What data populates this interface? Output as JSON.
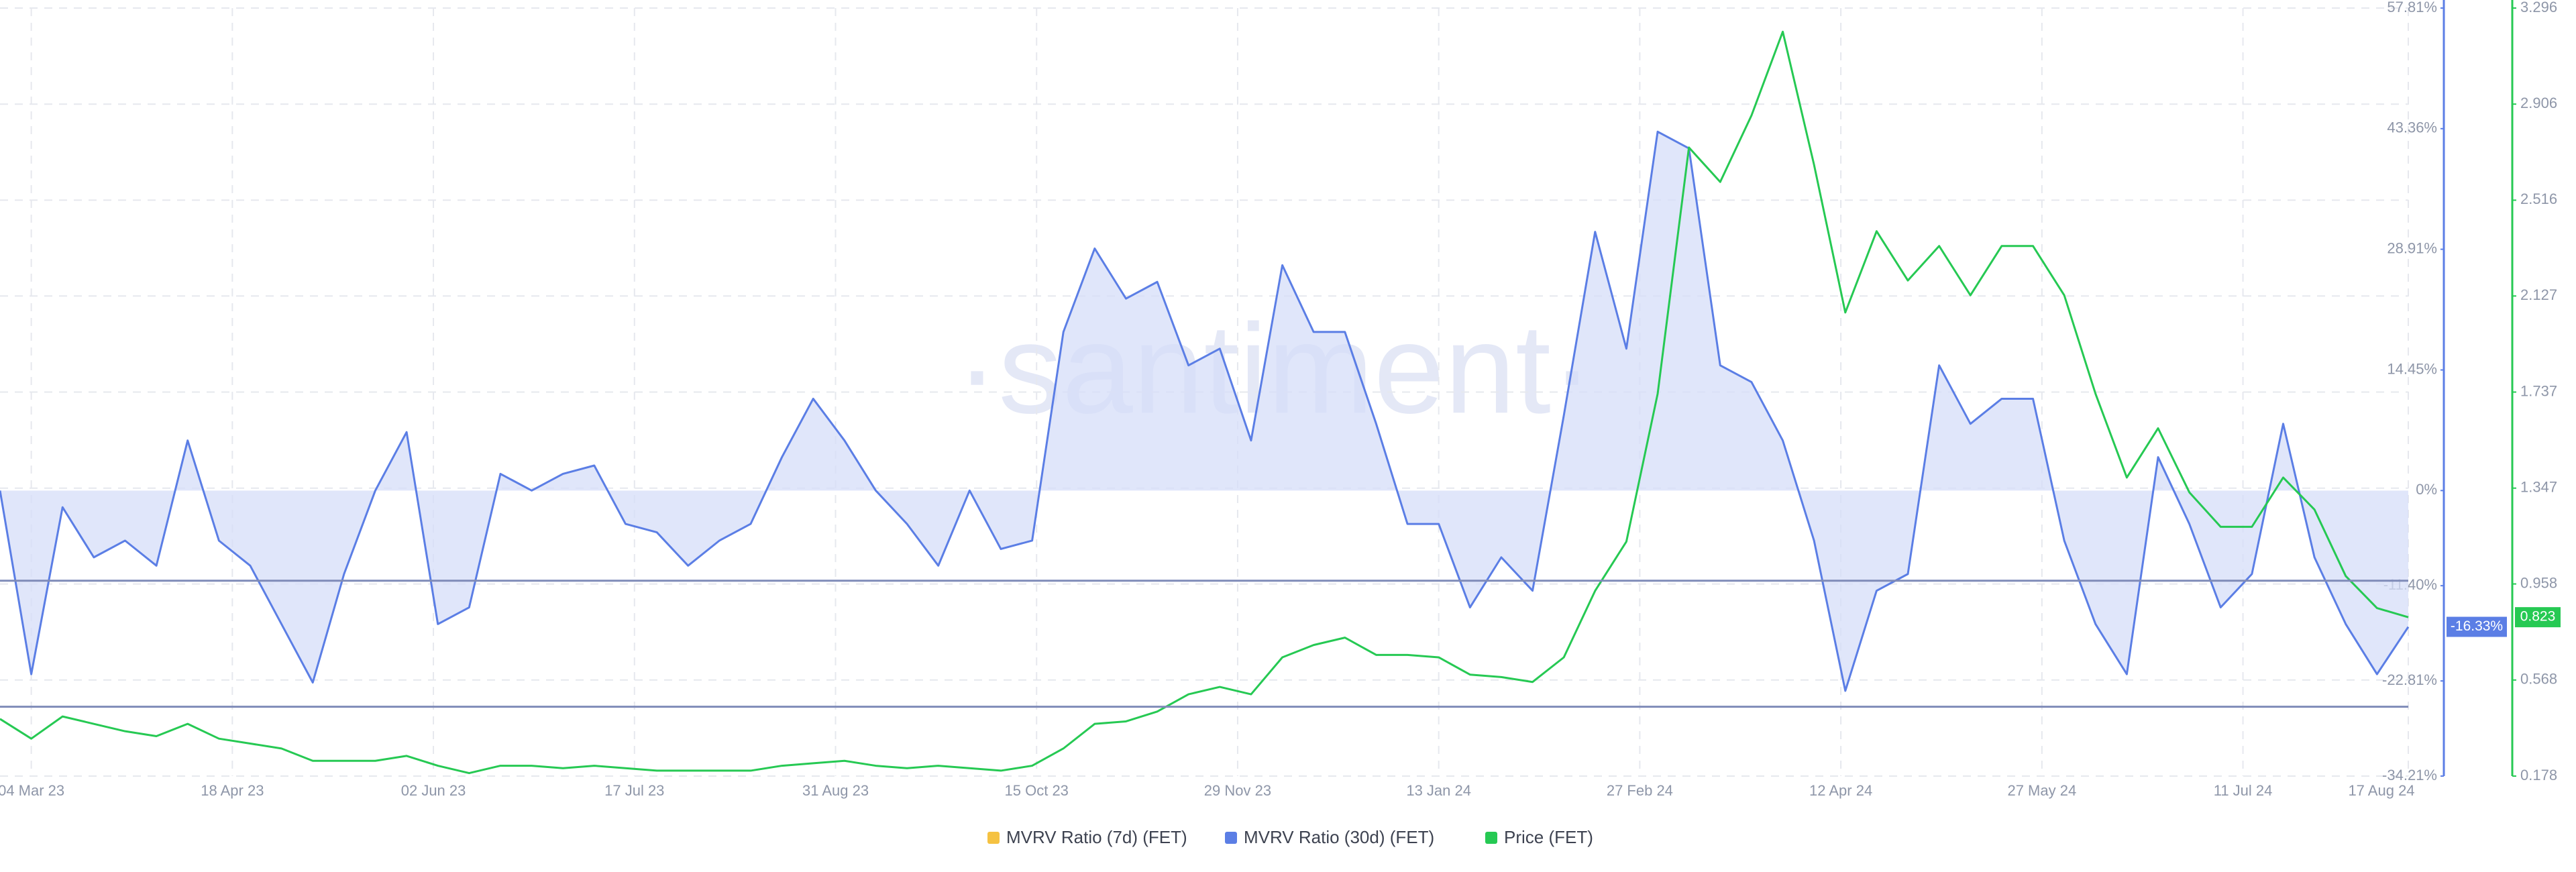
{
  "chart_data": {
    "type": "line",
    "watermark": "·santiment·",
    "x": [
      "2023-02-25",
      "2023-03-04",
      "2023-03-11",
      "2023-03-18",
      "2023-03-25",
      "2023-04-01",
      "2023-04-08",
      "2023-04-15",
      "2023-04-22",
      "2023-04-29",
      "2023-05-06",
      "2023-05-13",
      "2023-05-20",
      "2023-05-27",
      "2023-06-03",
      "2023-06-10",
      "2023-06-17",
      "2023-06-24",
      "2023-07-01",
      "2023-07-08",
      "2023-07-15",
      "2023-07-22",
      "2023-07-29",
      "2023-08-05",
      "2023-08-12",
      "2023-08-19",
      "2023-08-26",
      "2023-09-02",
      "2023-09-09",
      "2023-09-16",
      "2023-09-23",
      "2023-09-30",
      "2023-10-07",
      "2023-10-14",
      "2023-10-21",
      "2023-10-28",
      "2023-11-04",
      "2023-11-11",
      "2023-11-18",
      "2023-11-25",
      "2023-12-02",
      "2023-12-09",
      "2023-12-16",
      "2023-12-23",
      "2023-12-30",
      "2024-01-06",
      "2024-01-13",
      "2024-01-20",
      "2024-01-27",
      "2024-02-03",
      "2024-02-10",
      "2024-02-17",
      "2024-02-24",
      "2024-03-02",
      "2024-03-09",
      "2024-03-16",
      "2024-03-23",
      "2024-03-30",
      "2024-04-06",
      "2024-04-13",
      "2024-04-20",
      "2024-04-27",
      "2024-05-04",
      "2024-05-11",
      "2024-05-18",
      "2024-05-25",
      "2024-06-01",
      "2024-06-08",
      "2024-06-15",
      "2024-06-22",
      "2024-06-29",
      "2024-07-06",
      "2024-07-13",
      "2024-07-20",
      "2024-07-27",
      "2024-08-03",
      "2024-08-10",
      "2024-08-17"
    ],
    "xlim": [
      "2023-02-25",
      "2024-08-17"
    ],
    "xticks": [
      {
        "value": "2023-03-04",
        "label": "04 Mar 23"
      },
      {
        "value": "2023-04-18",
        "label": "18 Apr 23"
      },
      {
        "value": "2023-06-02",
        "label": "02 Jun 23"
      },
      {
        "value": "2023-07-17",
        "label": "17 Jul 23"
      },
      {
        "value": "2023-08-31",
        "label": "31 Aug 23"
      },
      {
        "value": "2023-10-15",
        "label": "15 Oct 23"
      },
      {
        "value": "2023-11-29",
        "label": "29 Nov 23"
      },
      {
        "value": "2024-01-13",
        "label": "13 Jan 24"
      },
      {
        "value": "2024-02-27",
        "label": "27 Feb 24"
      },
      {
        "value": "2024-04-12",
        "label": "12 Apr 24"
      },
      {
        "value": "2024-05-27",
        "label": "27 May 24"
      },
      {
        "value": "2024-07-11",
        "label": "11 Jul 24"
      },
      {
        "value": "2024-08-17",
        "label": "17 Aug 24"
      }
    ],
    "ylim": [
      -34.21,
      57.81
    ],
    "yticks": [
      {
        "value": 57.81,
        "label": "57.81%"
      },
      {
        "value": 43.36,
        "label": "43.36%"
      },
      {
        "value": 28.91,
        "label": "28.91%"
      },
      {
        "value": 14.45,
        "label": "14.45%"
      },
      {
        "value": 0,
        "label": "0%"
      },
      {
        "value": -11.4,
        "label": "-11.40%"
      },
      {
        "value": -22.81,
        "label": "-22.81%"
      },
      {
        "value": -34.21,
        "label": "-34.21%"
      }
    ],
    "y2lim": [
      0.178,
      3.296
    ],
    "y2ticks": [
      3.296,
      2.906,
      2.516,
      2.127,
      1.737,
      1.347,
      0.958,
      0.568,
      0.178
    ],
    "reference_lines": [
      -10.8,
      -25.9
    ],
    "grid": true,
    "series": [
      {
        "name": "MVRV Ratio (7d) (FET)",
        "color": "#f5c242",
        "values": [
          null,
          null,
          null,
          null,
          null,
          null,
          null,
          null,
          null,
          null,
          null,
          null,
          null,
          null,
          null,
          null,
          null,
          null,
          null,
          null,
          null,
          null,
          null,
          null,
          null,
          null,
          null,
          null,
          null,
          null,
          null,
          null,
          null,
          null,
          null,
          null,
          null,
          null,
          null,
          null,
          null,
          null,
          null,
          null,
          null,
          null,
          null,
          null,
          null,
          null,
          null,
          null,
          null,
          null,
          null,
          null,
          null,
          null,
          null,
          null,
          null,
          null,
          null,
          null,
          null,
          null,
          null,
          null,
          null,
          null,
          null,
          null,
          null,
          null,
          null,
          null,
          null,
          null
        ]
      },
      {
        "name": "MVRV Ratio (30d) (FET)",
        "color": "#5b7ee5",
        "area": true,
        "last_value_label": "-16.33%",
        "values": [
          0,
          -22,
          -2,
          -8,
          -6,
          -9,
          6,
          -6,
          -9,
          -16,
          -23,
          -10,
          0,
          7,
          -16,
          -14,
          2,
          0,
          2,
          3,
          -4,
          -5,
          -9,
          -6,
          -4,
          4,
          11,
          6,
          0,
          -4,
          -9,
          0,
          -7,
          -6,
          19,
          29,
          23,
          25,
          15,
          17,
          6,
          27,
          19,
          19,
          8,
          -4,
          -4,
          -14,
          -8,
          -12,
          9,
          31,
          17,
          43,
          41,
          15,
          13,
          6,
          -6,
          -24,
          -12,
          -10,
          15,
          8,
          11,
          11,
          -6,
          -16,
          -22,
          4,
          -4,
          -14,
          -10,
          8,
          -8,
          -16,
          -22,
          -16.33
        ]
      },
      {
        "name": "Price (FET)",
        "color": "#26c953",
        "axis": "y2",
        "values": [
          0.41,
          0.33,
          0.42,
          0.39,
          0.36,
          0.34,
          0.39,
          0.33,
          0.31,
          0.29,
          0.24,
          0.24,
          0.24,
          0.26,
          0.22,
          0.19,
          0.22,
          0.22,
          0.21,
          0.22,
          0.21,
          0.2,
          0.2,
          0.2,
          0.2,
          0.22,
          0.23,
          0.24,
          0.22,
          0.21,
          0.22,
          0.21,
          0.2,
          0.22,
          0.29,
          0.39,
          0.4,
          0.44,
          0.51,
          0.54,
          0.51,
          0.66,
          0.71,
          0.74,
          0.67,
          0.67,
          0.66,
          0.59,
          0.58,
          0.56,
          0.66,
          0.93,
          1.13,
          1.73,
          2.73,
          2.59,
          2.86,
          3.2,
          2.66,
          2.06,
          2.39,
          2.19,
          2.33,
          2.13,
          2.33,
          2.33,
          2.13,
          1.73,
          1.39,
          1.59,
          1.33,
          1.19,
          1.19,
          1.39,
          1.26,
          0.99,
          0.86,
          0.823
        ]
      }
    ]
  }
}
